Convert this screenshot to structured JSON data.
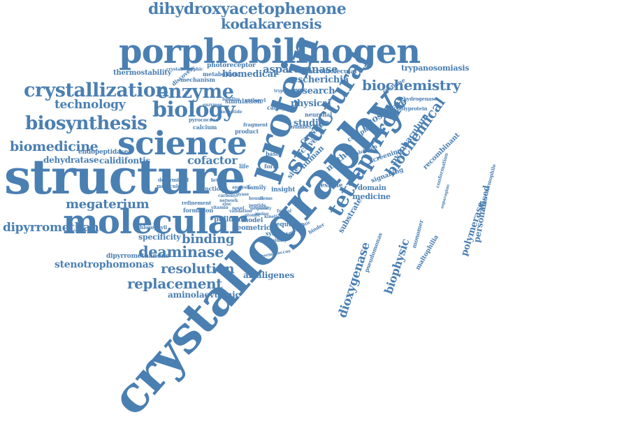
{
  "color": "#4a7fb2",
  "words": [
    "crystallography",
    "structure",
    "porphobilinogen",
    "protein",
    "science",
    "molecular",
    "structural",
    "tetrapyrrole",
    "biology",
    "crystallization",
    "enzyme",
    "biosynthesis",
    "dihydroxyacetophenone",
    "kodakarensis",
    "biomedicine",
    "biochemistry",
    "deaminase",
    "replacement",
    "resolution",
    "megaterium",
    "technology",
    "biochemical",
    "dipyrromethane",
    "binding",
    "dioxygenase",
    "biophysic",
    "cofactor",
    "asparaginase",
    "stenotrophomonas",
    "escherichia",
    "research",
    "physical",
    "phosphate",
    "studies",
    "pyrobaculum",
    "polymerase",
    "personalised",
    "dehydratase",
    "calidifontis",
    "biomedical",
    "aminolaevulinic",
    "alcaligenes",
    "method",
    "medicine",
    "trypanosomiasis",
    "specificity",
    "geometric",
    "endopeptidase",
    "thermostability",
    "photoreceptor",
    "metabolism",
    "mechanism",
    "macromolecular",
    "crystal",
    "human",
    "active",
    "site",
    "pullulan",
    "model",
    "sequence",
    "substrate",
    "recombinant",
    "discovery",
    "simulation",
    "calcium",
    "pyrococcus",
    "dipyrromethanone",
    "chlorophyll",
    "synthase",
    "domain",
    "residue",
    "signalling",
    "screening",
    "complex",
    "maltophilia",
    "pseudomonas",
    "monomer",
    "neuronal",
    "catalytic",
    "product",
    "fragment",
    "formation",
    "function",
    "refinement",
    "basic",
    "insight",
    "form",
    "family",
    "life",
    "cysteine",
    "dehydrogenase",
    "polyprotein",
    "determined",
    "molecule",
    "crystallographic",
    "hyperthermophile",
    "conformation",
    "calcicolin",
    "number",
    "binder",
    "preliminary",
    "thermococcus",
    "bacillus",
    "malonyl",
    "nucleotide",
    "enzymes",
    "analysis",
    "trypanosoma",
    "asparagine",
    "prosthetic",
    "validation",
    "network",
    "vitamin",
    "bridge",
    "carbonyl",
    "ligand",
    "bound",
    "quality",
    "zinc",
    "heme",
    "genome",
    "amino",
    "novel",
    "atomic",
    "kinetic",
    "lyase",
    "fungal",
    "peptide",
    "ring",
    "loop"
  ]
}
